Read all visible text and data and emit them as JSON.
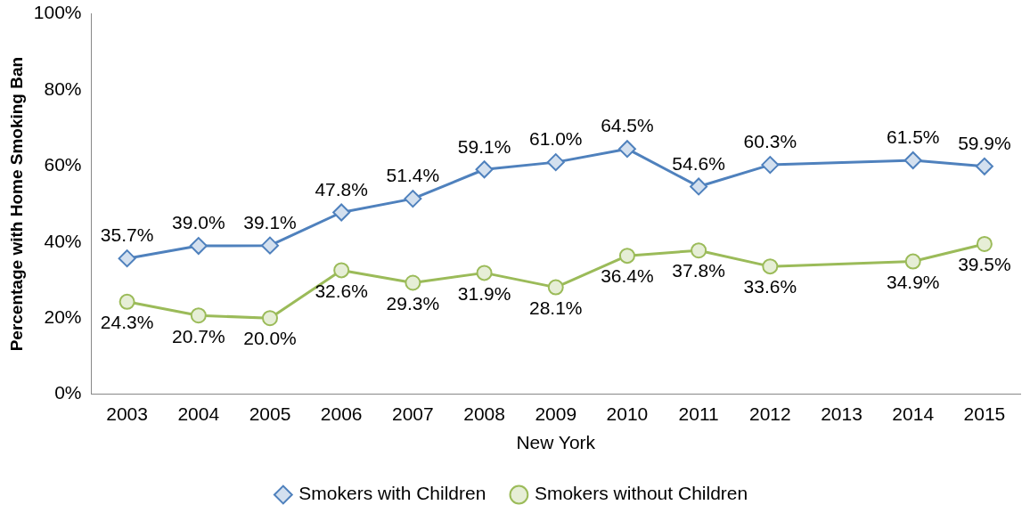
{
  "chart_data": {
    "type": "line",
    "xlabel": "New York",
    "ylabel": "Percentage with Home Smoking Ban",
    "categories": [
      "2003",
      "2004",
      "2005",
      "2006",
      "2007",
      "2008",
      "2009",
      "2010",
      "2011",
      "2012",
      "2013",
      "2014",
      "2015"
    ],
    "ylim": [
      0,
      100
    ],
    "yticks": [
      {
        "value": 0,
        "label": "0%"
      },
      {
        "value": 20,
        "label": "20%"
      },
      {
        "value": 40,
        "label": "40%"
      },
      {
        "value": 60,
        "label": "60%"
      },
      {
        "value": 80,
        "label": "80%"
      },
      {
        "value": 100,
        "label": "100%"
      }
    ],
    "legend": "bottom",
    "grid": false,
    "line_style": "solid",
    "series": [
      {
        "name": "Smokers with Children",
        "color": "#4f81bd",
        "marker": "diamond",
        "values": [
          35.7,
          39.0,
          39.1,
          47.8,
          51.4,
          59.1,
          61.0,
          64.5,
          54.6,
          60.3,
          null,
          61.5,
          59.9
        ],
        "value_labels": [
          "35.7%",
          "39.0%",
          "39.1%",
          "47.8%",
          "51.4%",
          "59.1%",
          "61.0%",
          "64.5%",
          "54.6%",
          "60.3%",
          null,
          "61.5%",
          "59.9%"
        ]
      },
      {
        "name": "Smokers without Children",
        "color": "#9bbb59",
        "marker": "circle",
        "values": [
          24.3,
          20.7,
          20.0,
          32.6,
          29.3,
          31.9,
          28.1,
          36.4,
          37.8,
          33.6,
          null,
          34.9,
          39.5
        ],
        "value_labels": [
          "24.3%",
          "20.7%",
          "20.0%",
          "32.6%",
          "29.3%",
          "31.9%",
          "28.1%",
          "36.4%",
          "37.8%",
          "33.6%",
          null,
          "34.9%",
          "39.5%"
        ]
      }
    ]
  }
}
